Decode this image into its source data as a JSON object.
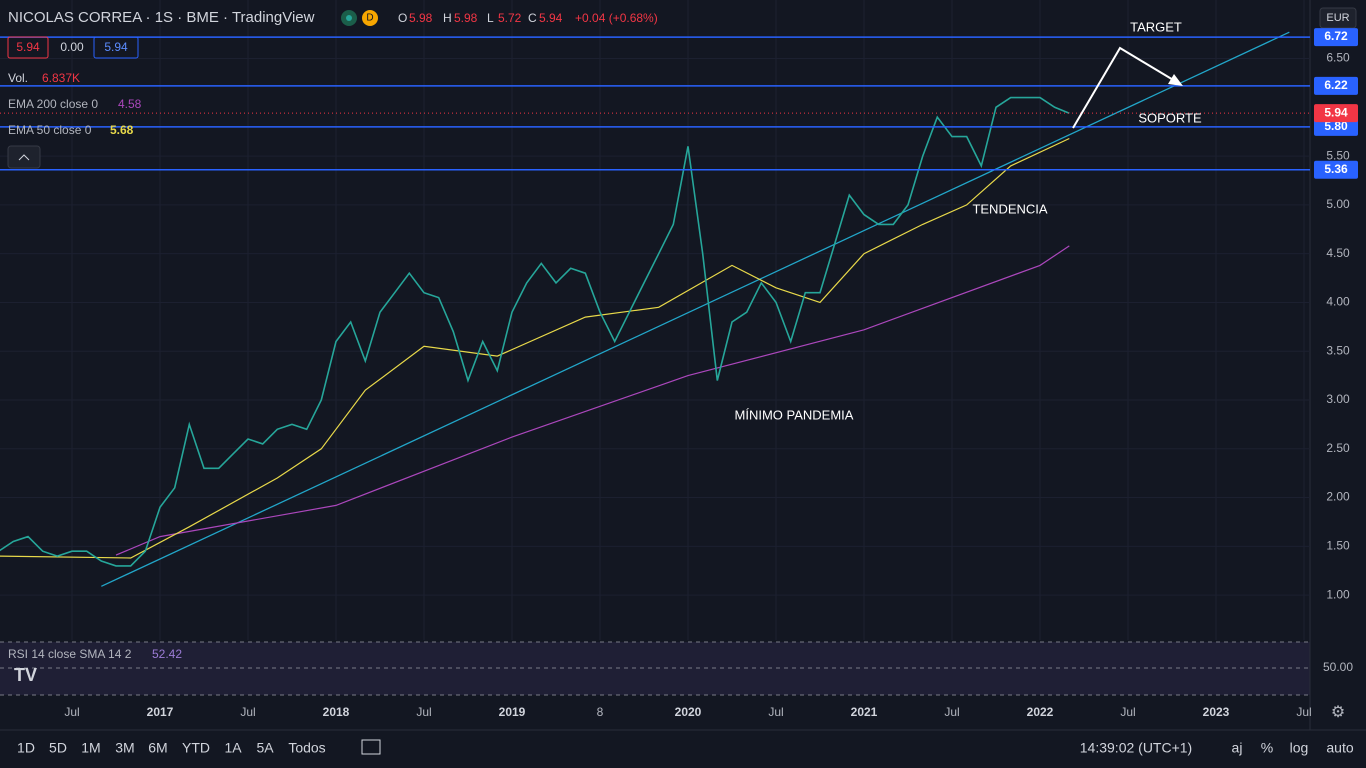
{
  "header": {
    "symbol": "NICOLAS CORREA · 1S · BME · TradingView",
    "flag": "D",
    "ohlc": [
      {
        "label": "O",
        "value": "5.98"
      },
      {
        "label": "H",
        "value": "5.98"
      },
      {
        "label": "L",
        "value": "5.72"
      },
      {
        "label": "C",
        "value": "5.94"
      }
    ],
    "change": "+0.04 (+0.68%)",
    "badges": [
      "5.94",
      "0.00",
      "5.94"
    ],
    "currency": "EUR"
  },
  "indicators": {
    "volume": {
      "label": "Vol.",
      "value": "6.837K"
    },
    "ema200": {
      "label": "EMA 200 close 0",
      "value": "4.58"
    },
    "ema50": {
      "label": "EMA 50 close 0",
      "value": "5.68"
    },
    "rsi": {
      "label": "RSI 14 close SMA 14 2",
      "value": "52.42",
      "scale": "50.00"
    }
  },
  "toolbar": {
    "ranges": [
      "1D",
      "5D",
      "1M",
      "3M",
      "6M",
      "YTD",
      "1A",
      "5A",
      "Todos"
    ],
    "time": "14:39:02 (UTC+1)",
    "options": [
      "aj",
      "%",
      "log",
      "auto"
    ]
  },
  "chart_data": {
    "type": "line",
    "x": [
      "2016-02",
      "2016-03",
      "2016-04",
      "2016-05",
      "2016-06",
      "2016-07",
      "2016-08",
      "2016-09",
      "2016-10",
      "2016-11",
      "2016-12",
      "2017-01",
      "2017-02",
      "2017-03",
      "2017-04",
      "2017-05",
      "2017-06",
      "2017-07",
      "2017-08",
      "2017-09",
      "2017-10",
      "2017-11",
      "2017-12",
      "2018-01",
      "2018-02",
      "2018-03",
      "2018-04",
      "2018-05",
      "2018-06",
      "2018-07",
      "2018-08",
      "2018-09",
      "2018-10",
      "2018-11",
      "2018-12",
      "2019-01",
      "2019-02",
      "2019-03",
      "2019-04",
      "2019-05",
      "2019-06",
      "2019-07",
      "2019-08",
      "2019-09",
      "2019-10",
      "2019-11",
      "2019-12",
      "2020-01",
      "2020-02",
      "2020-03",
      "2020-04",
      "2020-05",
      "2020-06",
      "2020-07",
      "2020-08",
      "2020-09",
      "2020-10",
      "2020-11",
      "2020-12",
      "2021-01",
      "2021-02",
      "2021-03",
      "2021-04",
      "2021-05",
      "2021-06",
      "2021-07",
      "2021-08",
      "2021-09",
      "2021-10",
      "2021-11",
      "2021-12",
      "2022-01",
      "2022-02",
      "2022-03"
    ],
    "series": [
      {
        "name": "NICOLAS CORREA",
        "color": "#26a69a",
        "values": [
          1.45,
          1.55,
          1.6,
          1.45,
          1.4,
          1.45,
          1.45,
          1.35,
          1.3,
          1.3,
          1.45,
          1.9,
          2.1,
          2.75,
          2.3,
          2.3,
          2.45,
          2.6,
          2.55,
          2.7,
          2.75,
          2.7,
          3.0,
          3.6,
          3.8,
          3.4,
          3.9,
          4.1,
          4.3,
          4.1,
          4.05,
          3.7,
          3.2,
          3.6,
          3.3,
          3.9,
          4.2,
          4.4,
          4.2,
          4.35,
          4.3,
          3.9,
          3.6,
          3.9,
          4.2,
          4.5,
          4.8,
          5.6,
          4.5,
          3.2,
          3.8,
          3.9,
          4.2,
          4.0,
          3.6,
          4.1,
          4.1,
          4.6,
          5.1,
          4.9,
          4.8,
          4.8,
          5.0,
          5.5,
          5.9,
          5.7,
          5.7,
          5.4,
          6.0,
          6.1,
          6.1,
          6.1,
          6.0,
          5.94
        ]
      }
    ],
    "ema": [
      {
        "name": "EMA 200",
        "color": "#ab47bc",
        "x": [
          "2016-10",
          "2017-01",
          "2018-01",
          "2019-01",
          "2020-01",
          "2021-01",
          "2022-01",
          "2022-03"
        ],
        "values": [
          1.41,
          1.6,
          1.92,
          2.62,
          3.25,
          3.72,
          4.38,
          4.58
        ]
      },
      {
        "name": "EMA 50",
        "color": "#e8d94a",
        "x": [
          "2016-02",
          "2016-11",
          "2017-03",
          "2017-09",
          "2017-12",
          "2018-03",
          "2018-07",
          "2018-12",
          "2019-06",
          "2019-11",
          "2020-04",
          "2020-07",
          "2020-10",
          "2021-01",
          "2021-05",
          "2021-08",
          "2021-11",
          "2022-03"
        ],
        "values": [
          1.4,
          1.38,
          1.7,
          2.2,
          2.5,
          3.1,
          3.55,
          3.45,
          3.85,
          3.95,
          4.38,
          4.15,
          4.0,
          4.5,
          4.8,
          5.0,
          5.4,
          5.68
        ]
      }
    ],
    "levels": [
      {
        "value": 6.72,
        "label": "6.72"
      },
      {
        "value": 6.22,
        "label": "6.22"
      },
      {
        "value": 5.8,
        "label": "5.80"
      },
      {
        "value": 5.36,
        "label": "5.36"
      }
    ],
    "last": {
      "value": 5.94,
      "label": "5.94"
    },
    "trendline": {
      "x": [
        "2016-09",
        "2023-06"
      ],
      "values": [
        1.09,
        6.77
      ]
    },
    "annotations": [
      "TARGET",
      "SOPORTE",
      "TENDENCIA",
      "MÍNIMO PANDEMIA"
    ],
    "ylim": [
      0.54,
      7.1
    ],
    "yticks": [
      {
        "value": 1,
        "label": "1.00"
      },
      {
        "value": 1.5,
        "label": "1.50"
      },
      {
        "value": 2,
        "label": "2.00"
      },
      {
        "value": 2.5,
        "label": "2.50"
      },
      {
        "value": 3,
        "label": "3.00"
      },
      {
        "value": 3.5,
        "label": "3.50"
      },
      {
        "value": 4,
        "label": "4.00"
      },
      {
        "value": 4.5,
        "label": "4.50"
      },
      {
        "value": 5,
        "label": "5.00"
      },
      {
        "value": 5.5,
        "label": "5.50"
      },
      {
        "value": 6.5,
        "label": "6.50"
      }
    ],
    "xticks": [
      {
        "value": "2016-07",
        "label": "Jul"
      },
      {
        "value": "2017-01",
        "label": "2017"
      },
      {
        "value": "2017-07",
        "label": "Jul"
      },
      {
        "value": "2018-01",
        "label": "2018"
      },
      {
        "value": "2018-07",
        "label": "Jul"
      },
      {
        "value": "2019-01",
        "label": "2019"
      },
      {
        "value": "2019-07",
        "label": "8"
      },
      {
        "value": "2020-01",
        "label": "2020"
      },
      {
        "value": "2020-07",
        "label": "Jul"
      },
      {
        "value": "2021-01",
        "label": "2021"
      },
      {
        "value": "2021-07",
        "label": "Jul"
      },
      {
        "value": "2022-01",
        "label": "2022"
      },
      {
        "value": "2022-07",
        "label": "Jul"
      },
      {
        "value": "2023-01",
        "label": "2023"
      },
      {
        "value": "2023-07",
        "label": "Jul"
      }
    ]
  }
}
